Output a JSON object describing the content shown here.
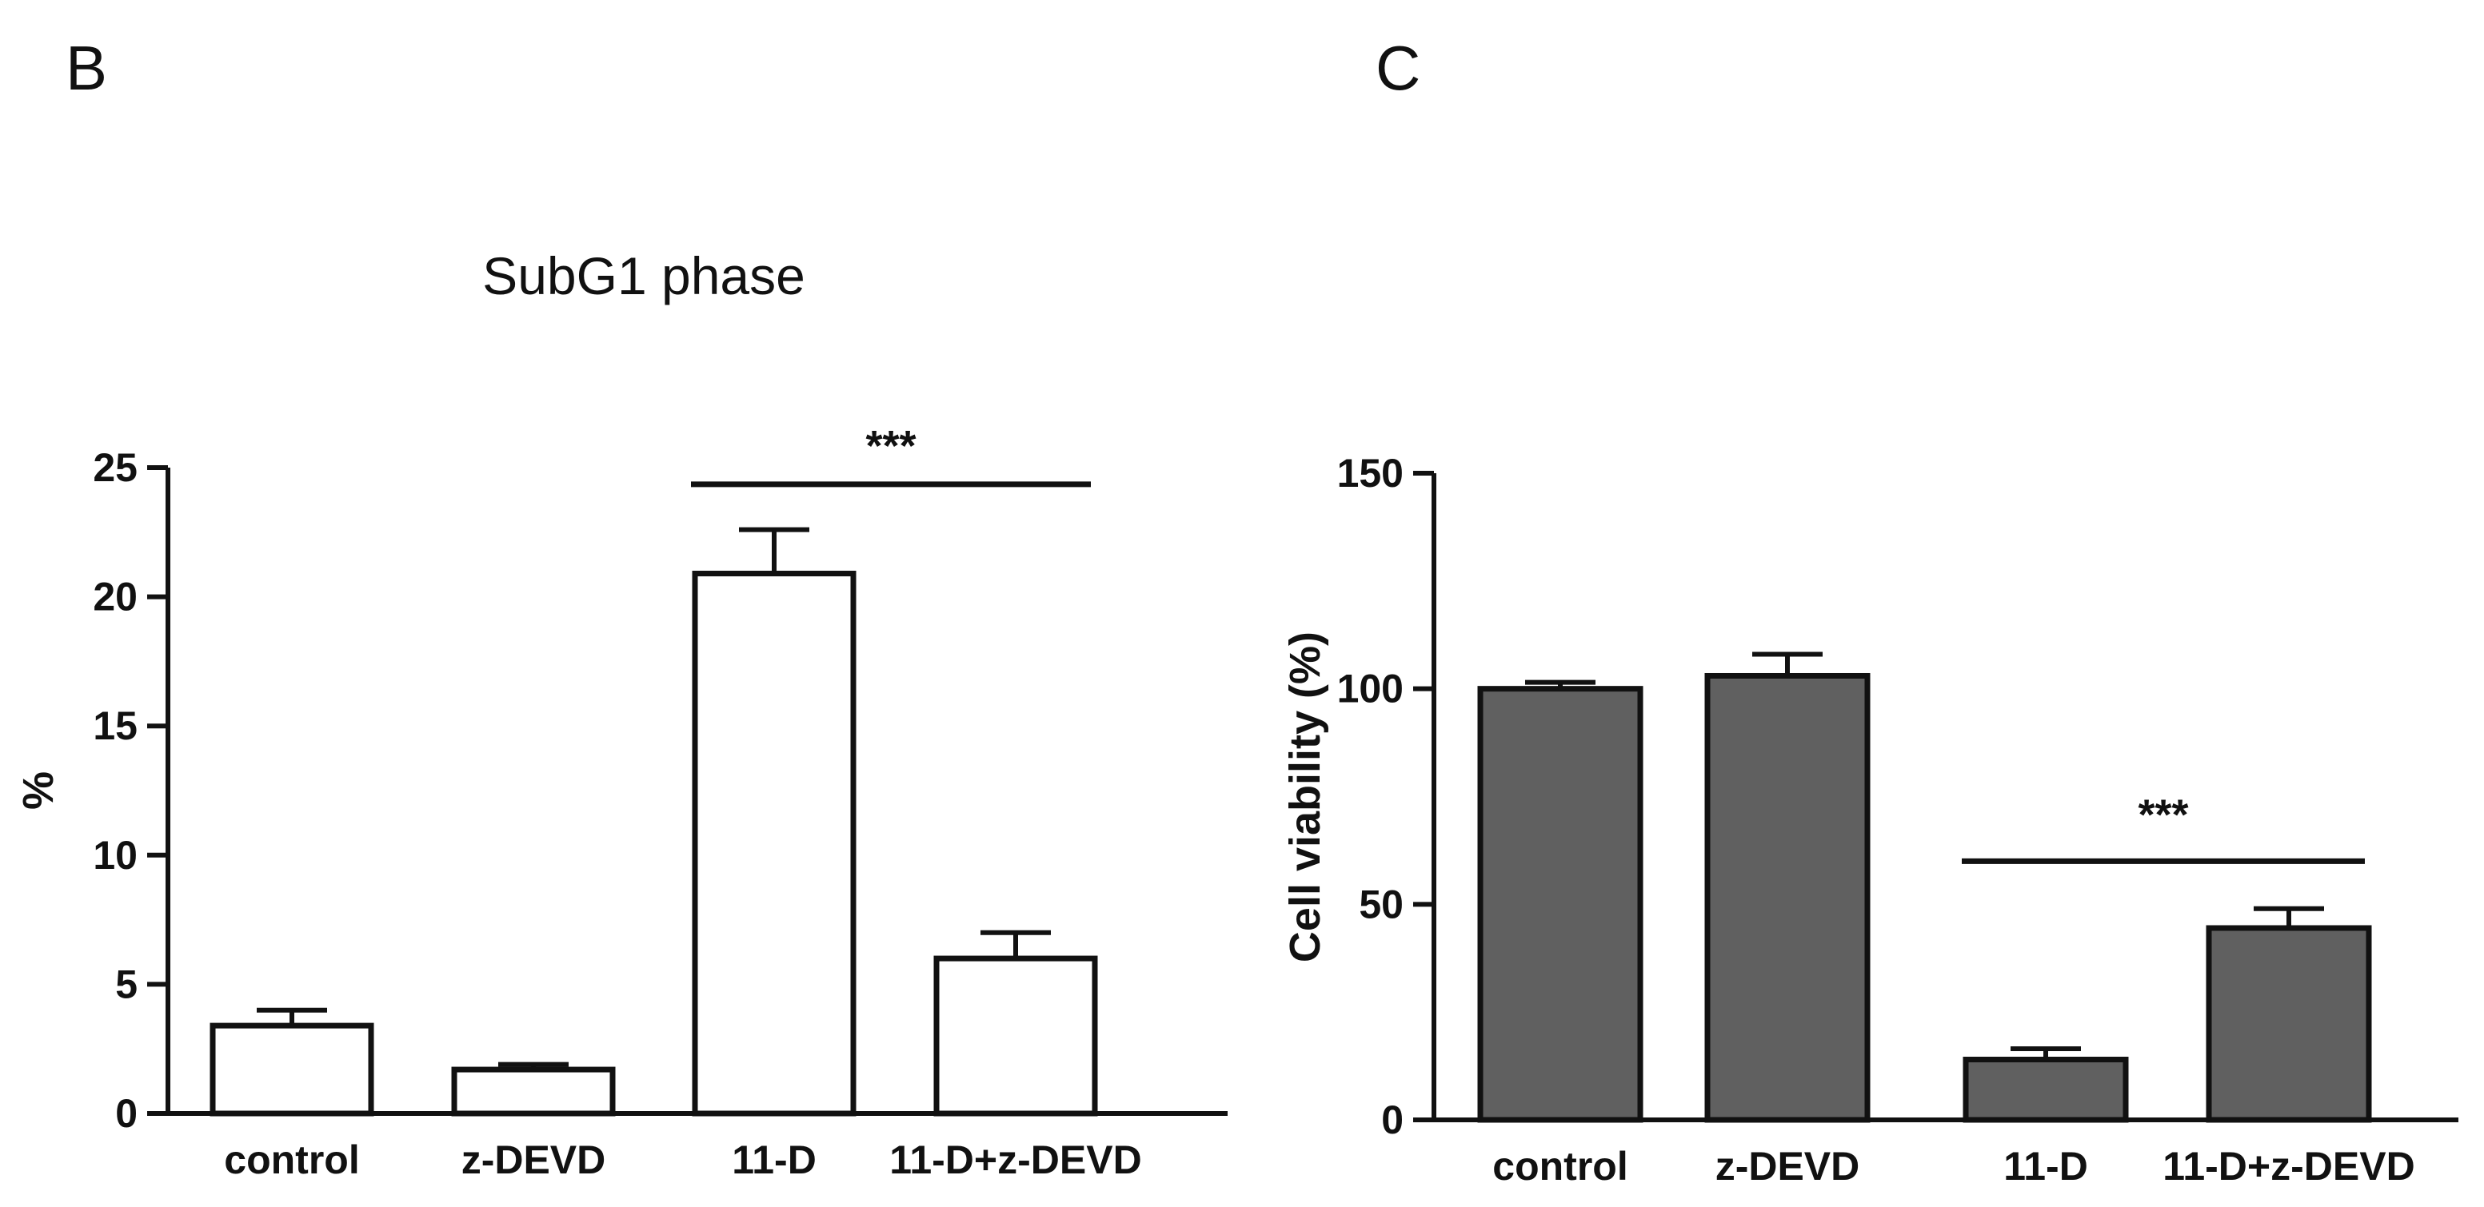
{
  "panel_labels": {
    "left": "B",
    "right": "C"
  },
  "chart_data": [
    {
      "type": "bar",
      "title": "SubG1 phase",
      "xlabel": "",
      "ylabel": "%",
      "ylim": [
        0,
        25
      ],
      "yticks": [
        0,
        5,
        10,
        15,
        20,
        25
      ],
      "ytick_labels": [
        "0",
        "5",
        "10",
        "15",
        "20",
        "25"
      ],
      "categories": [
        "control",
        "z-DEVD",
        "11-D",
        "11-D+z-DEVD"
      ],
      "values": [
        3.4,
        1.7,
        20.9,
        6.0
      ],
      "errors": [
        0.6,
        0.2,
        1.7,
        1.0
      ],
      "bar_color": "#ffffff",
      "significance": {
        "label": "***",
        "from_index": 2,
        "to_index": 3,
        "y": 24.6
      }
    },
    {
      "type": "bar",
      "title": "",
      "xlabel": "",
      "ylabel": "Cell viability (%)",
      "ylim": [
        0,
        150
      ],
      "yticks": [
        0,
        50,
        100,
        150
      ],
      "ytick_labels": [
        "0",
        "50",
        "100",
        "150"
      ],
      "categories": [
        "control",
        "z-DEVD",
        "11-D",
        "11-D+z-DEVD"
      ],
      "values": [
        100,
        103,
        14,
        44.5
      ],
      "errors": [
        1.5,
        5,
        2.5,
        4.5
      ],
      "bar_color": "#606060",
      "significance": {
        "label": "***",
        "from_index": 2,
        "to_index": 3,
        "y": 60
      }
    }
  ]
}
